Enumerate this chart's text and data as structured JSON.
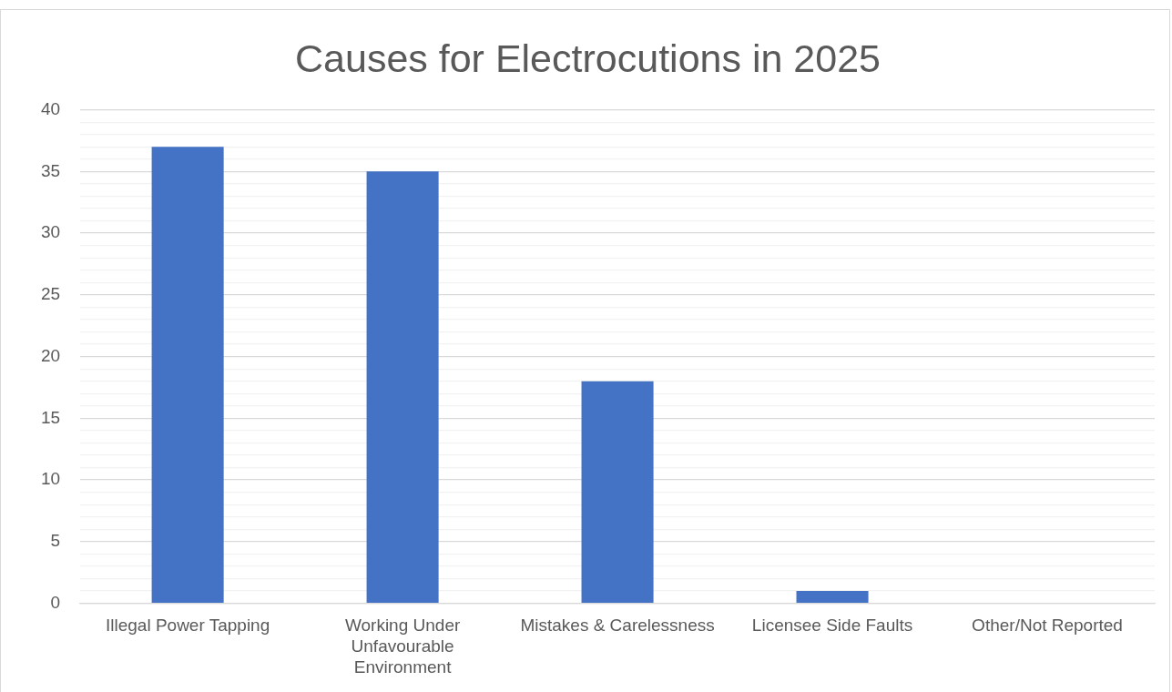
{
  "chart_data": {
    "type": "bar",
    "title": "Causes for Electrocutions in 2025",
    "categories": [
      "Illegal Power Tapping",
      "Working Under Unfavourable Environment",
      "Mistakes & Carelessness",
      "Licensee Side Faults",
      "Other/Not Reported"
    ],
    "values": [
      37,
      35,
      18,
      1,
      0
    ],
    "color": "#4472c4",
    "ylim": [
      0,
      40
    ],
    "yticks": [
      0,
      {
        "value": 1,
        "label": null
      },
      {
        "value": 2,
        "label": null
      },
      {
        "value": 3,
        "label": null
      },
      {
        "value": 4,
        "label": null
      },
      5,
      {
        "value": 6,
        "label": null
      },
      {
        "value": 7,
        "label": null
      },
      {
        "value": 8,
        "label": null
      },
      {
        "value": 9,
        "label": null
      },
      10,
      {
        "value": 11,
        "label": null
      },
      {
        "value": 12,
        "label": null
      },
      {
        "value": 13,
        "label": null
      },
      {
        "value": 14,
        "label": null
      },
      15,
      {
        "value": 16,
        "label": null
      },
      {
        "value": 17,
        "label": null
      },
      {
        "value": 18,
        "label": null
      },
      {
        "value": 19,
        "label": null
      },
      20,
      {
        "value": 21,
        "label": null
      },
      {
        "value": 22,
        "label": null
      },
      {
        "value": 23,
        "label": null
      },
      {
        "value": 24,
        "label": null
      },
      25,
      {
        "value": 26,
        "label": null
      },
      {
        "value": 27,
        "label": null
      },
      {
        "value": 28,
        "label": null
      },
      {
        "value": 29,
        "label": null
      },
      30,
      {
        "value": 31,
        "label": null
      },
      {
        "value": 32,
        "label": null
      },
      {
        "value": 33,
        "label": null
      },
      {
        "value": 34,
        "label": null
      },
      35,
      {
        "value": 36,
        "label": null
      },
      {
        "value": 37,
        "label": null
      },
      {
        "value": 38,
        "label": null
      },
      {
        "value": 39,
        "label": null
      },
      40
    ],
    "grid": true
  }
}
